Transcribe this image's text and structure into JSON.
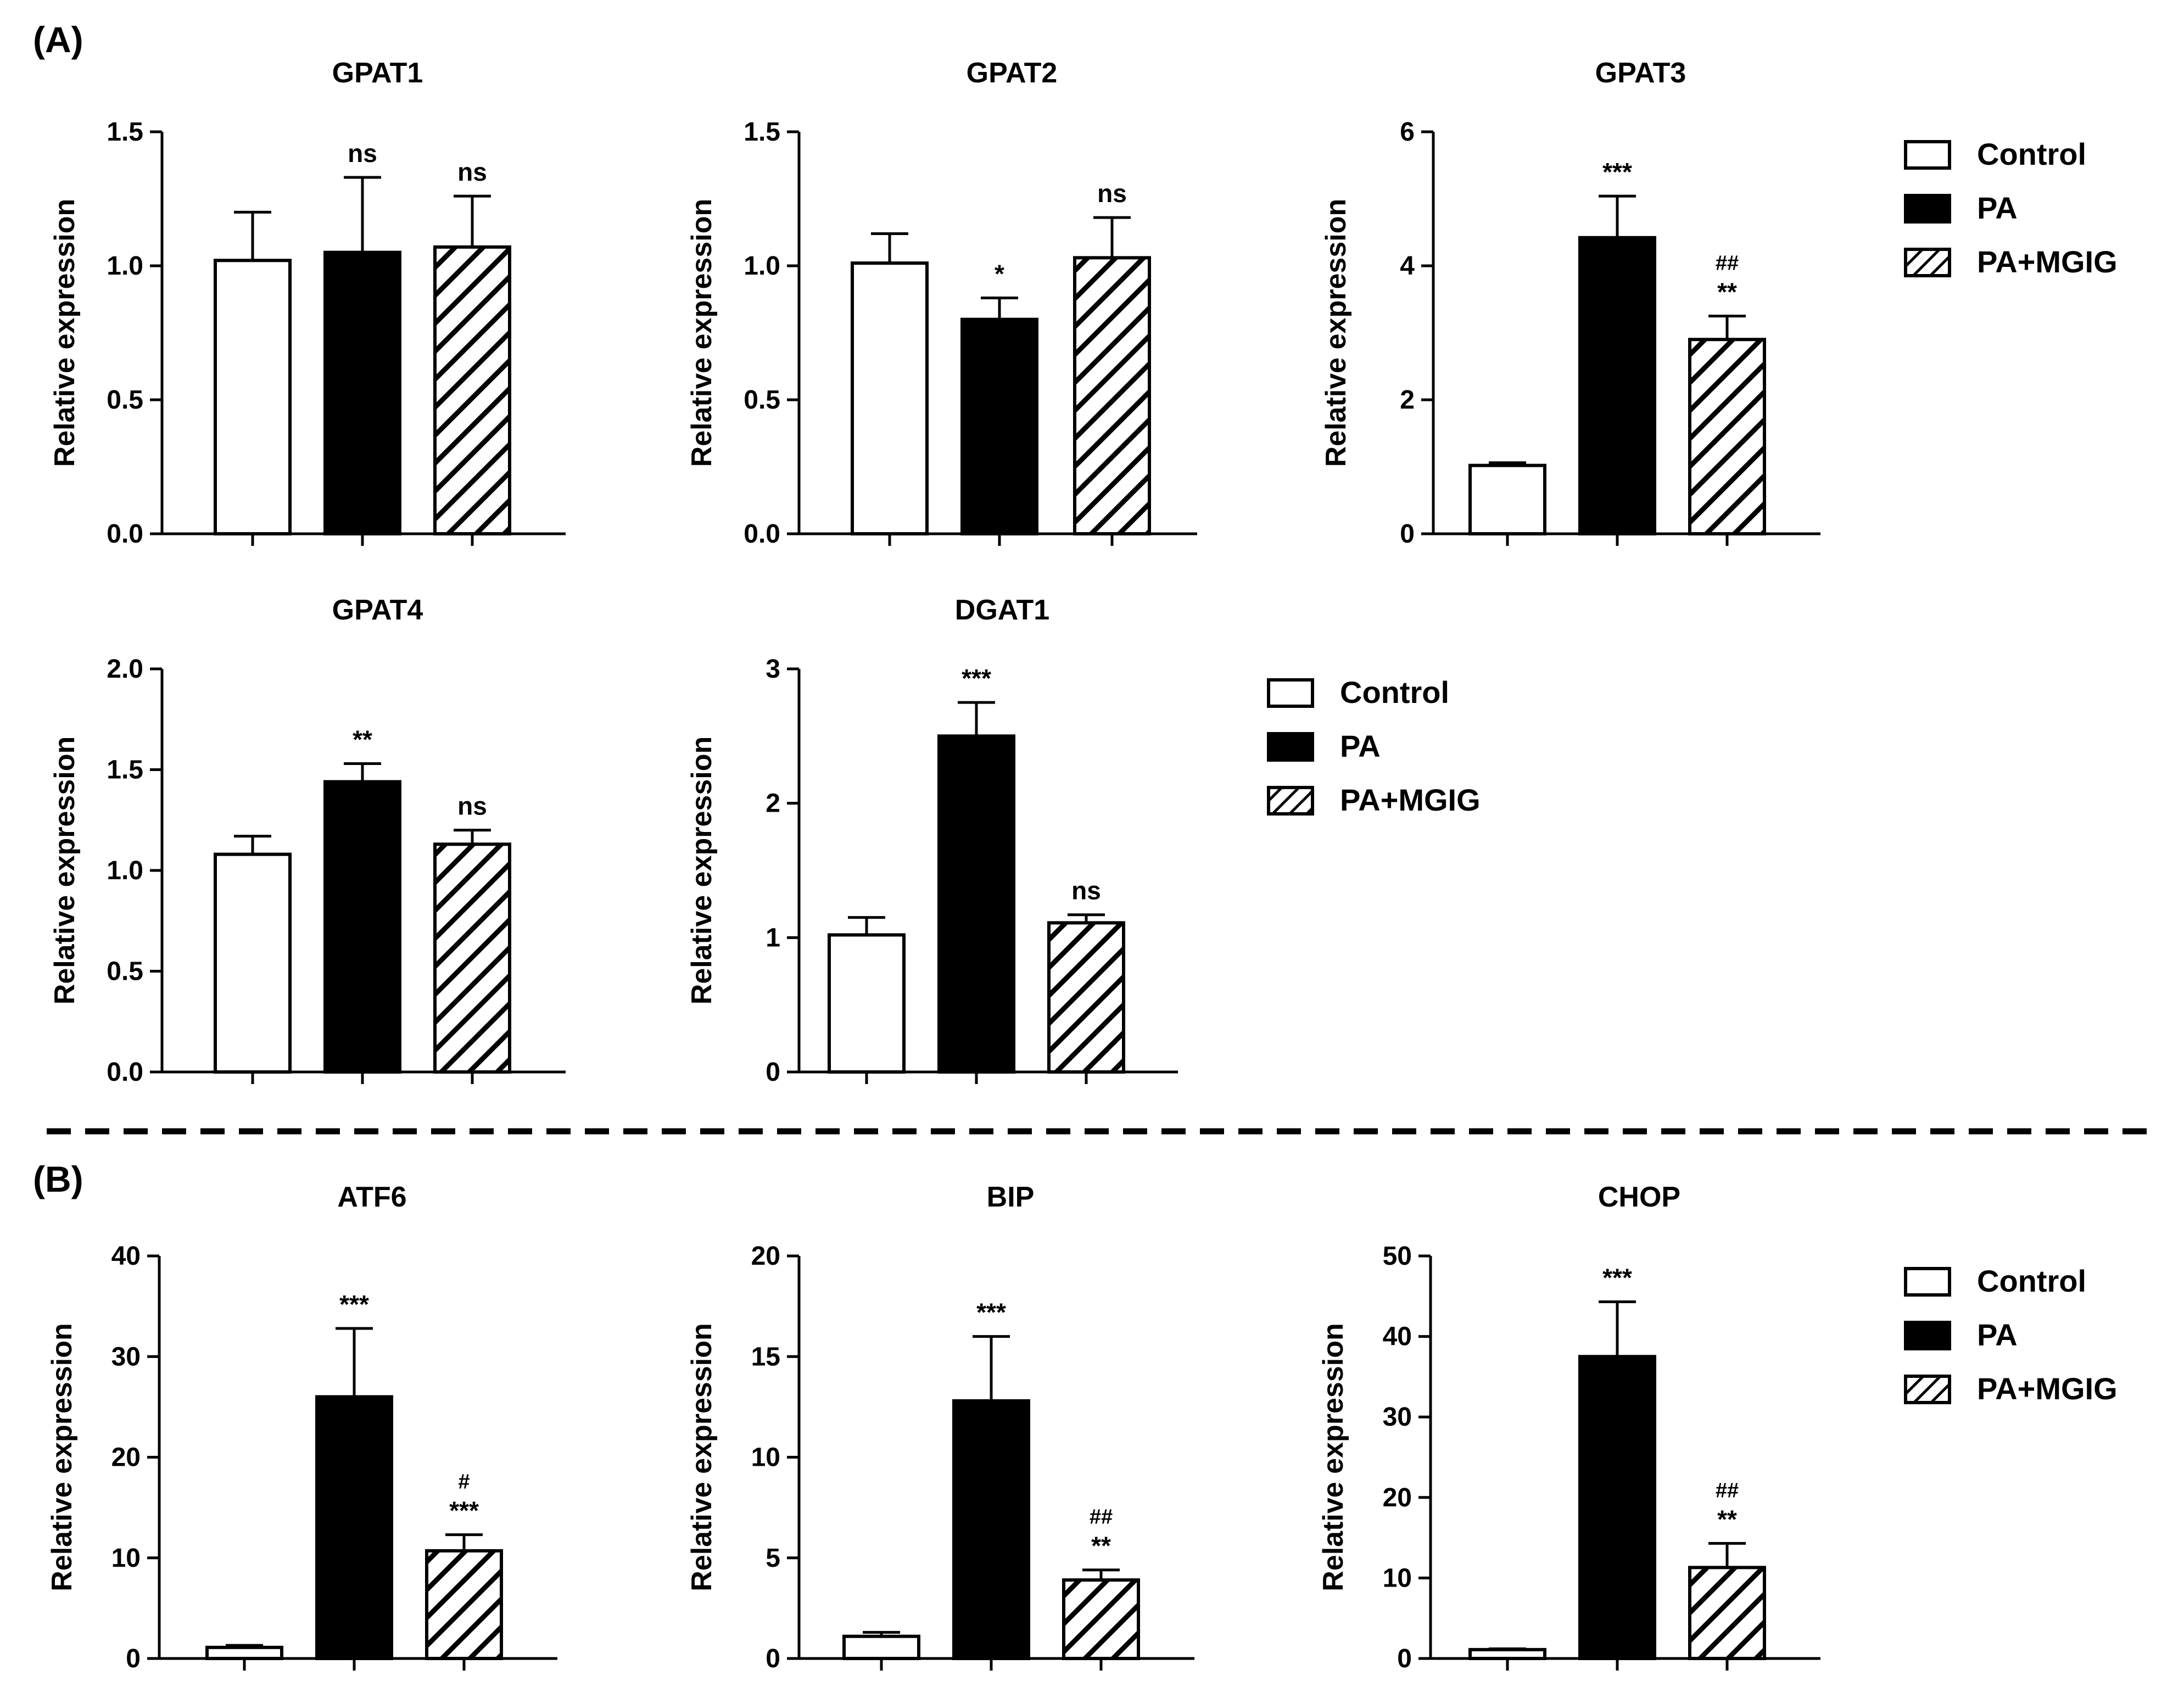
{
  "panels": [
    {
      "label": "(A)",
      "key": "A"
    },
    {
      "label": "(B)",
      "key": "B"
    }
  ],
  "legend": {
    "entries": [
      {
        "label": "Control",
        "fill": "white"
      },
      {
        "label": "PA",
        "fill": "black"
      },
      {
        "label": "PA+MGIG",
        "fill": "hatch"
      }
    ]
  },
  "colors": {
    "line": "#000000",
    "background": "#ffffff",
    "divider": "#000000"
  },
  "chart_data": [
    {
      "type": "bar",
      "title": "GPAT1",
      "ylabel": "Relative expression",
      "ylim": [
        0,
        1.5
      ],
      "yticks": [
        "0.0",
        "0.5",
        "1.0",
        "1.5"
      ],
      "categories": [
        "Control",
        "PA",
        "PA+MGIG"
      ],
      "values": [
        1.02,
        1.05,
        1.07
      ],
      "errors": [
        0.18,
        0.28,
        0.19
      ],
      "annotations": [
        "",
        "ns",
        "ns"
      ],
      "hash_annotations": [
        "",
        "",
        ""
      ]
    },
    {
      "type": "bar",
      "title": "GPAT2",
      "ylabel": "Relative expression",
      "ylim": [
        0,
        1.5
      ],
      "yticks": [
        "0.0",
        "0.5",
        "1.0",
        "1.5"
      ],
      "categories": [
        "Control",
        "PA",
        "PA+MGIG"
      ],
      "values": [
        1.01,
        0.8,
        1.03
      ],
      "errors": [
        0.11,
        0.08,
        0.15
      ],
      "annotations": [
        "",
        "*",
        "ns"
      ],
      "hash_annotations": [
        "",
        "",
        ""
      ]
    },
    {
      "type": "bar",
      "title": "GPAT3",
      "ylabel": "Relative expression",
      "ylim": [
        0,
        6
      ],
      "yticks": [
        "0",
        "2",
        "4",
        "6"
      ],
      "categories": [
        "Control",
        "PA",
        "PA+MGIG"
      ],
      "values": [
        1.02,
        4.42,
        2.9
      ],
      "errors": [
        0.04,
        0.62,
        0.35
      ],
      "annotations": [
        "",
        "***",
        "**"
      ],
      "hash_annotations": [
        "",
        "",
        "##"
      ]
    },
    {
      "type": "bar",
      "title": "GPAT4",
      "ylabel": "Relative expression",
      "ylim": [
        0,
        2.0
      ],
      "yticks": [
        "0.0",
        "0.5",
        "1.0",
        "1.5",
        "2.0"
      ],
      "categories": [
        "Control",
        "PA",
        "PA+MGIG"
      ],
      "values": [
        1.08,
        1.44,
        1.13
      ],
      "errors": [
        0.09,
        0.09,
        0.07
      ],
      "annotations": [
        "",
        "**",
        "ns"
      ],
      "hash_annotations": [
        "",
        "",
        ""
      ]
    },
    {
      "type": "bar",
      "title": "DGAT1",
      "ylabel": "Relative expression",
      "ylim": [
        0,
        3
      ],
      "yticks": [
        "0",
        "1",
        "2",
        "3"
      ],
      "categories": [
        "Control",
        "PA",
        "PA+MGIG"
      ],
      "values": [
        1.02,
        2.5,
        1.11
      ],
      "errors": [
        0.13,
        0.25,
        0.06
      ],
      "annotations": [
        "",
        "***",
        "ns"
      ],
      "hash_annotations": [
        "",
        "",
        ""
      ]
    },
    {
      "type": "bar",
      "title": "ATF6",
      "ylabel": "Relative expression",
      "ylim": [
        0,
        40
      ],
      "yticks": [
        "0",
        "10",
        "20",
        "30",
        "40"
      ],
      "categories": [
        "Control",
        "PA",
        "PA+MGIG"
      ],
      "values": [
        1.1,
        26.0,
        10.7
      ],
      "errors": [
        0.2,
        6.8,
        1.6
      ],
      "annotations": [
        "",
        "***",
        "***"
      ],
      "hash_annotations": [
        "",
        "",
        "#"
      ]
    },
    {
      "type": "bar",
      "title": "BIP",
      "ylabel": "Relative expression",
      "ylim": [
        0,
        20
      ],
      "yticks": [
        "0",
        "5",
        "10",
        "15",
        "20"
      ],
      "categories": [
        "Control",
        "PA",
        "PA+MGIG"
      ],
      "values": [
        1.1,
        12.8,
        3.9
      ],
      "errors": [
        0.2,
        3.2,
        0.5
      ],
      "annotations": [
        "",
        "***",
        "**"
      ],
      "hash_annotations": [
        "",
        "",
        "##"
      ]
    },
    {
      "type": "bar",
      "title": "CHOP",
      "ylabel": "Relative expression",
      "ylim": [
        0,
        50
      ],
      "yticks": [
        "0",
        "10",
        "20",
        "30",
        "40",
        "50"
      ],
      "categories": [
        "Control",
        "PA",
        "PA+MGIG"
      ],
      "values": [
        1.1,
        37.5,
        11.3
      ],
      "errors": [
        0.1,
        6.8,
        3.0
      ],
      "annotations": [
        "",
        "***",
        "**"
      ],
      "hash_annotations": [
        "",
        "",
        "##"
      ]
    }
  ]
}
